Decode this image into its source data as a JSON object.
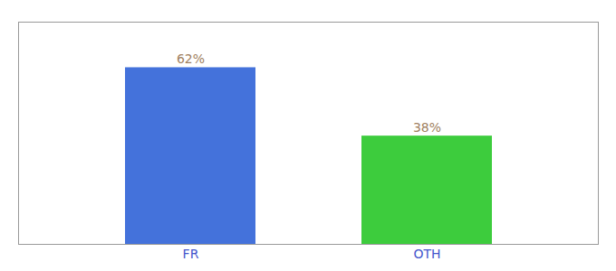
{
  "chart_data": {
    "type": "bar",
    "categories": [
      "FR",
      "OTH"
    ],
    "values": [
      62,
      38
    ],
    "value_labels": [
      "62%",
      "38%"
    ],
    "colors": [
      "#4472db",
      "#3dcc3d"
    ],
    "ylim": [
      0,
      78
    ],
    "data_labels": true,
    "tick_labels": "x"
  }
}
